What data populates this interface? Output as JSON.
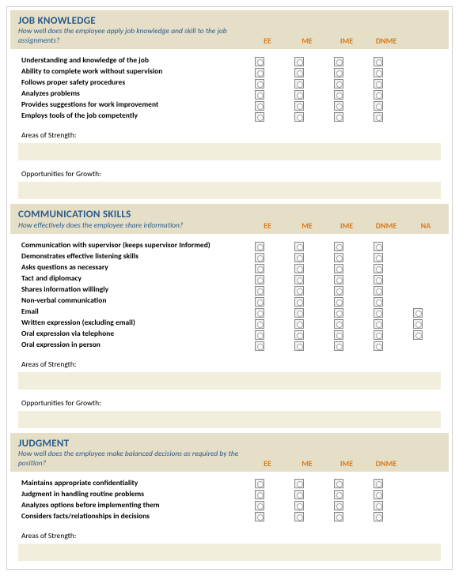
{
  "ratingColumns": [
    "EE",
    "ME",
    "IME",
    "DNME",
    "NA"
  ],
  "sections": [
    {
      "title": "JOB KNOWLEDGE",
      "subtitle": "How well does the employee apply job knowledge and skill to the job assignments?",
      "columns": 4,
      "criteria": [
        {
          "label": "Understanding and knowledge of the job",
          "cols": 4
        },
        {
          "label": "Ability to complete work without supervision",
          "cols": 4
        },
        {
          "label": "Follows proper safety procedures",
          "cols": 4
        },
        {
          "label": "Analyzes problems",
          "cols": 4
        },
        {
          "label": "Provides suggestions for work improvement",
          "cols": 4
        },
        {
          "label": "Employs tools of the job competently",
          "cols": 4
        }
      ],
      "strengthsLabel": "Areas of Strength:",
      "growthLabel": "Opportunities for Growth:"
    },
    {
      "title": "COMMUNICATION SKILLS",
      "subtitle": "How effectively does the employee share information?",
      "columns": 5,
      "criteria": [
        {
          "label": "Communication with supervisor (keeps supervisor Informed)",
          "cols": 4
        },
        {
          "label": "Demonstrates effective listening skills",
          "cols": 4
        },
        {
          "label": "Asks questions as necessary",
          "cols": 4
        },
        {
          "label": "Tact and diplomacy",
          "cols": 4
        },
        {
          "label": "Shares information willingly",
          "cols": 4
        },
        {
          "label": "Non-verbal communication",
          "cols": 4
        },
        {
          "label": "Email",
          "cols": 5
        },
        {
          "label": "Written expression (excluding email)",
          "cols": 5
        },
        {
          "label": "Oral expression via telephone",
          "cols": 5
        },
        {
          "label": "Oral expression in person",
          "cols": 4
        }
      ],
      "strengthsLabel": "Areas of Strength:",
      "growthLabel": "Opportunities for Growth:"
    },
    {
      "title": "JUDGMENT",
      "subtitle": "How well does the employee make balanced decisions as required by the position?",
      "columns": 4,
      "criteria": [
        {
          "label": "Maintains appropriate confidentiality",
          "cols": 4
        },
        {
          "label": "Judgment in handling routine problems",
          "cols": 4
        },
        {
          "label": "Analyzes options before implementing them",
          "cols": 4
        },
        {
          "label": "Considers facts/relationships in decisions",
          "cols": 4
        }
      ],
      "strengthsLabel": "Areas of Strength:",
      "growthLabel": null
    }
  ]
}
